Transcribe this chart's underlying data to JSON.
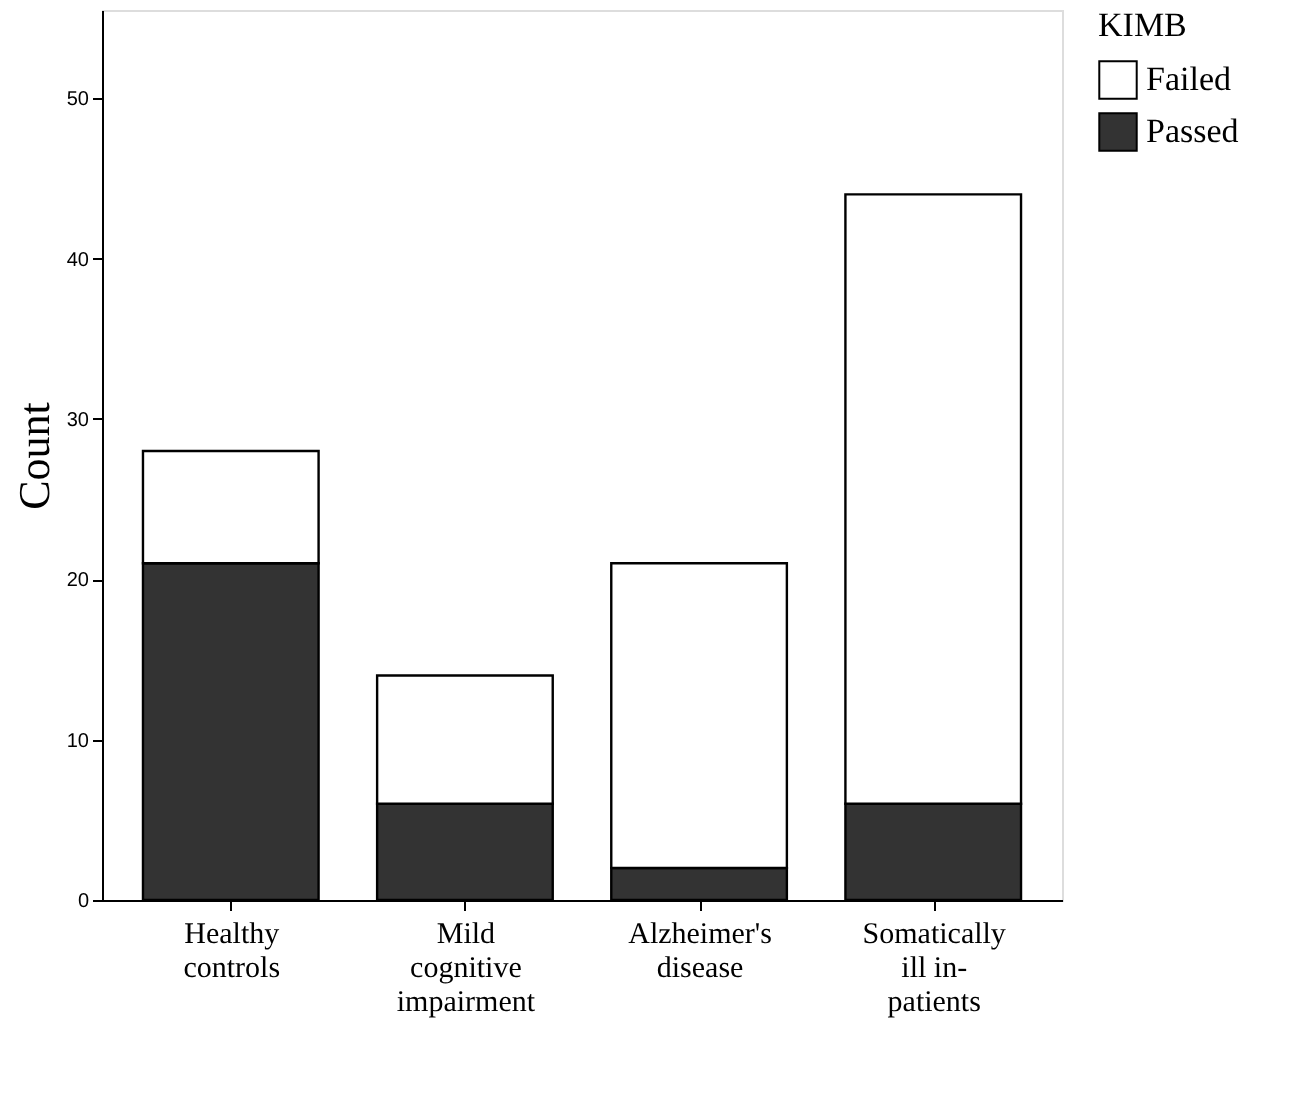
{
  "chart_data": {
    "type": "bar",
    "stacked": true,
    "ylabel": "Count",
    "legend_title": "KIMB",
    "categories": [
      "Healthy controls",
      "Mild cognitive impairment",
      "Alzheimer's disease",
      "Somatically ill in-patients"
    ],
    "series": [
      {
        "name": "Passed",
        "color": "#333333",
        "values": [
          21,
          6,
          2,
          6
        ]
      },
      {
        "name": "Failed",
        "color": "#ffffff",
        "values": [
          7,
          8,
          19,
          38
        ]
      }
    ],
    "ylim": [
      0,
      55.5
    ],
    "yticks": [
      0,
      10,
      20,
      30,
      40,
      50
    ],
    "grid": false,
    "legend": "top right"
  }
}
